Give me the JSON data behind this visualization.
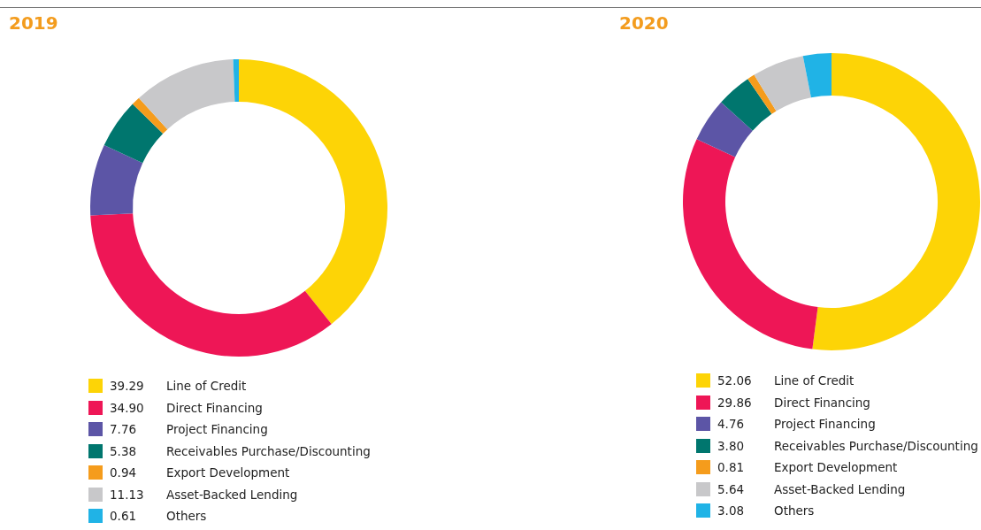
{
  "chart_data": [
    {
      "type": "donut",
      "title": "2019",
      "categories": [
        "Line of Credit",
        "Direct Financing",
        "Project Financing",
        "Receivables Purchase/Discounting",
        "Export Development",
        "Asset-Backed Lending",
        "Others"
      ],
      "values": [
        39.29,
        34.9,
        7.76,
        5.38,
        0.94,
        11.13,
        0.61
      ],
      "value_labels": [
        "39.29",
        "34.90",
        "7.76",
        "5.38",
        "0.94",
        "11.13",
        "0.61"
      ],
      "colors": [
        "#fdd406",
        "#ee1656",
        "#5c55a6",
        "#00766e",
        "#f59c1c",
        "#c8c8ca",
        "#20b3e6"
      ],
      "legend": "bottom"
    },
    {
      "type": "donut",
      "title": "2020",
      "categories": [
        "Line of Credit",
        "Direct Financing",
        "Project Financing",
        "Receivables Purchase/Discounting",
        "Export Development",
        "Asset-Backed Lending",
        "Others"
      ],
      "values": [
        52.06,
        29.86,
        4.76,
        3.8,
        0.81,
        5.64,
        3.08
      ],
      "value_labels": [
        "52.06",
        "29.86",
        "4.76",
        "3.80",
        "0.81",
        "5.64",
        "3.08"
      ],
      "colors": [
        "#fdd406",
        "#ee1656",
        "#5c55a6",
        "#00766e",
        "#f59c1c",
        "#c8c8ca",
        "#20b3e6"
      ],
      "legend": "bottom"
    }
  ]
}
